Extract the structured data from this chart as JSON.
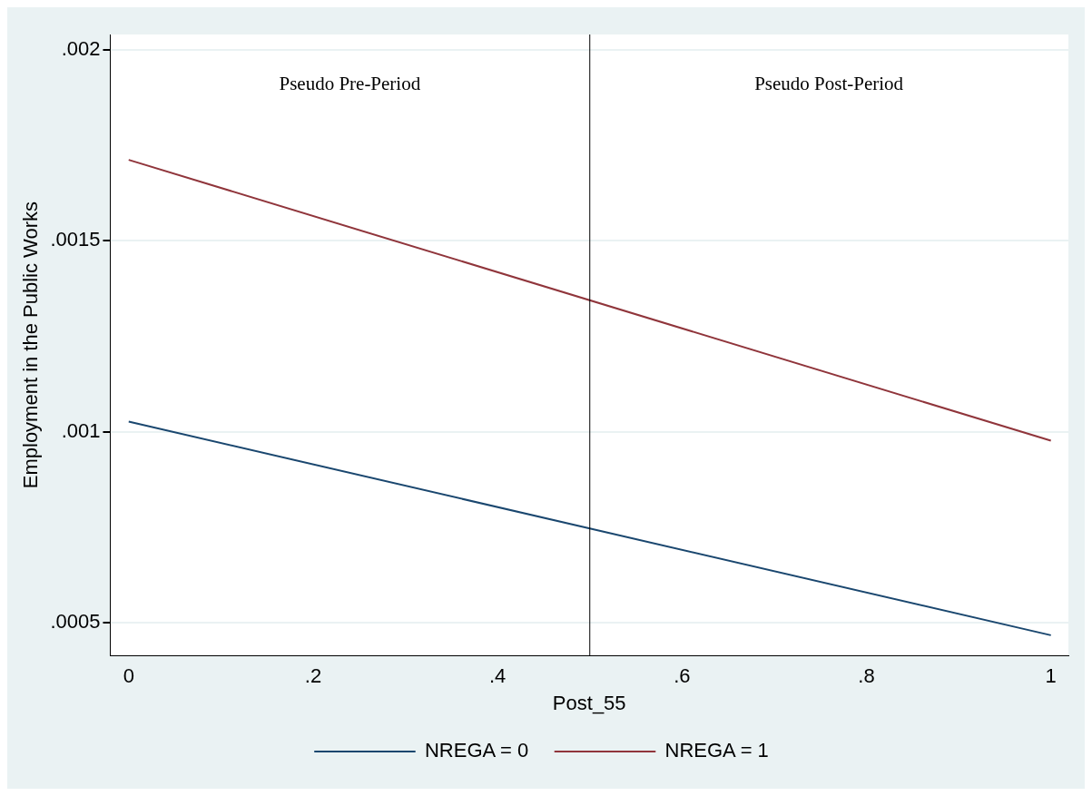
{
  "chart_data": {
    "type": "line",
    "xlabel": "Post_55",
    "ylabel": "Employment in the Public Works",
    "x": [
      0,
      1
    ],
    "series": [
      {
        "name": "NREGA = 0",
        "color": "#1a476f",
        "values": [
          0.001027,
          0.000468
        ]
      },
      {
        "name": "NREGA = 1",
        "color": "#90353b",
        "values": [
          0.001712,
          0.000977
        ]
      }
    ],
    "xlim": [
      -0.02,
      1.019
    ],
    "xticks": [
      {
        "value": 0,
        "label": "0"
      },
      {
        "value": 0.2,
        "label": ".2"
      },
      {
        "value": 0.4,
        "label": ".4"
      },
      {
        "value": 0.6,
        "label": ".6"
      },
      {
        "value": 0.8,
        "label": ".8"
      },
      {
        "value": 1,
        "label": "1"
      }
    ],
    "ylim": [
      0.000415,
      0.00204
    ],
    "yticks": [
      {
        "value": 0.0005,
        "label": ".0005"
      },
      {
        "value": 0.001,
        "label": ".001"
      },
      {
        "value": 0.0015,
        "label": ".0015"
      },
      {
        "value": 0.002,
        "label": ".002"
      }
    ],
    "ref_lines": [
      {
        "axis": "x",
        "value": 0.5,
        "color": "#000000"
      }
    ],
    "annotations": [
      "Pseudo Pre-Period",
      "Pseudo Post-Period"
    ],
    "grid": "y",
    "legend": "bottom",
    "marker": "none",
    "line_style": "solid"
  }
}
